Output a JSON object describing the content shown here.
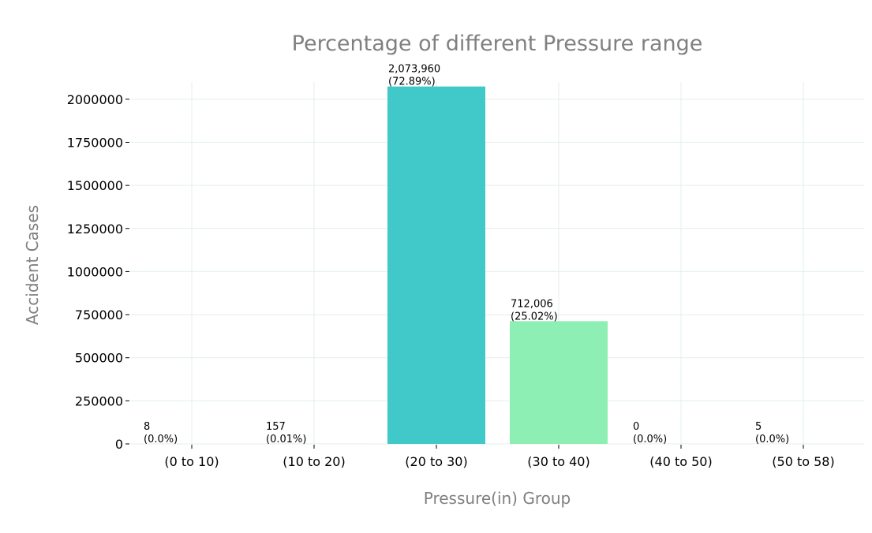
{
  "chart_data": {
    "type": "bar",
    "title": "Percentage of different Pressure range",
    "xlabel": "Pressure(in) Group",
    "ylabel": "Accident Cases",
    "categories": [
      "(0 to 10)",
      "(10 to 20)",
      "(20 to 30)",
      "(30 to 40)",
      "(40 to 50)",
      "(50 to 58)"
    ],
    "values": [
      8,
      157,
      2073960,
      712006,
      0,
      5
    ],
    "value_labels": [
      "8",
      "157",
      "2,073,960",
      "712,006",
      "0",
      "5"
    ],
    "percent_labels": [
      "(0.0%)",
      "(0.01%)",
      "(72.89%)",
      "(25.02%)",
      "(0.0%)",
      "(0.0%)"
    ],
    "bar_colors": [
      "#a5e8e4",
      "#c9ddea",
      "#41c8c8",
      "#8eefb4",
      "#c2e7f0",
      "#d6eddc"
    ],
    "yticks": [
      0,
      250000,
      500000,
      750000,
      1000000,
      1250000,
      1500000,
      1750000,
      2000000
    ],
    "ytick_labels": [
      "0",
      "250000",
      "500000",
      "750000",
      "1000000",
      "1250000",
      "1500000",
      "1750000",
      "2000000"
    ],
    "ylim": [
      0,
      2100000
    ],
    "grid": true,
    "legend": "none"
  }
}
